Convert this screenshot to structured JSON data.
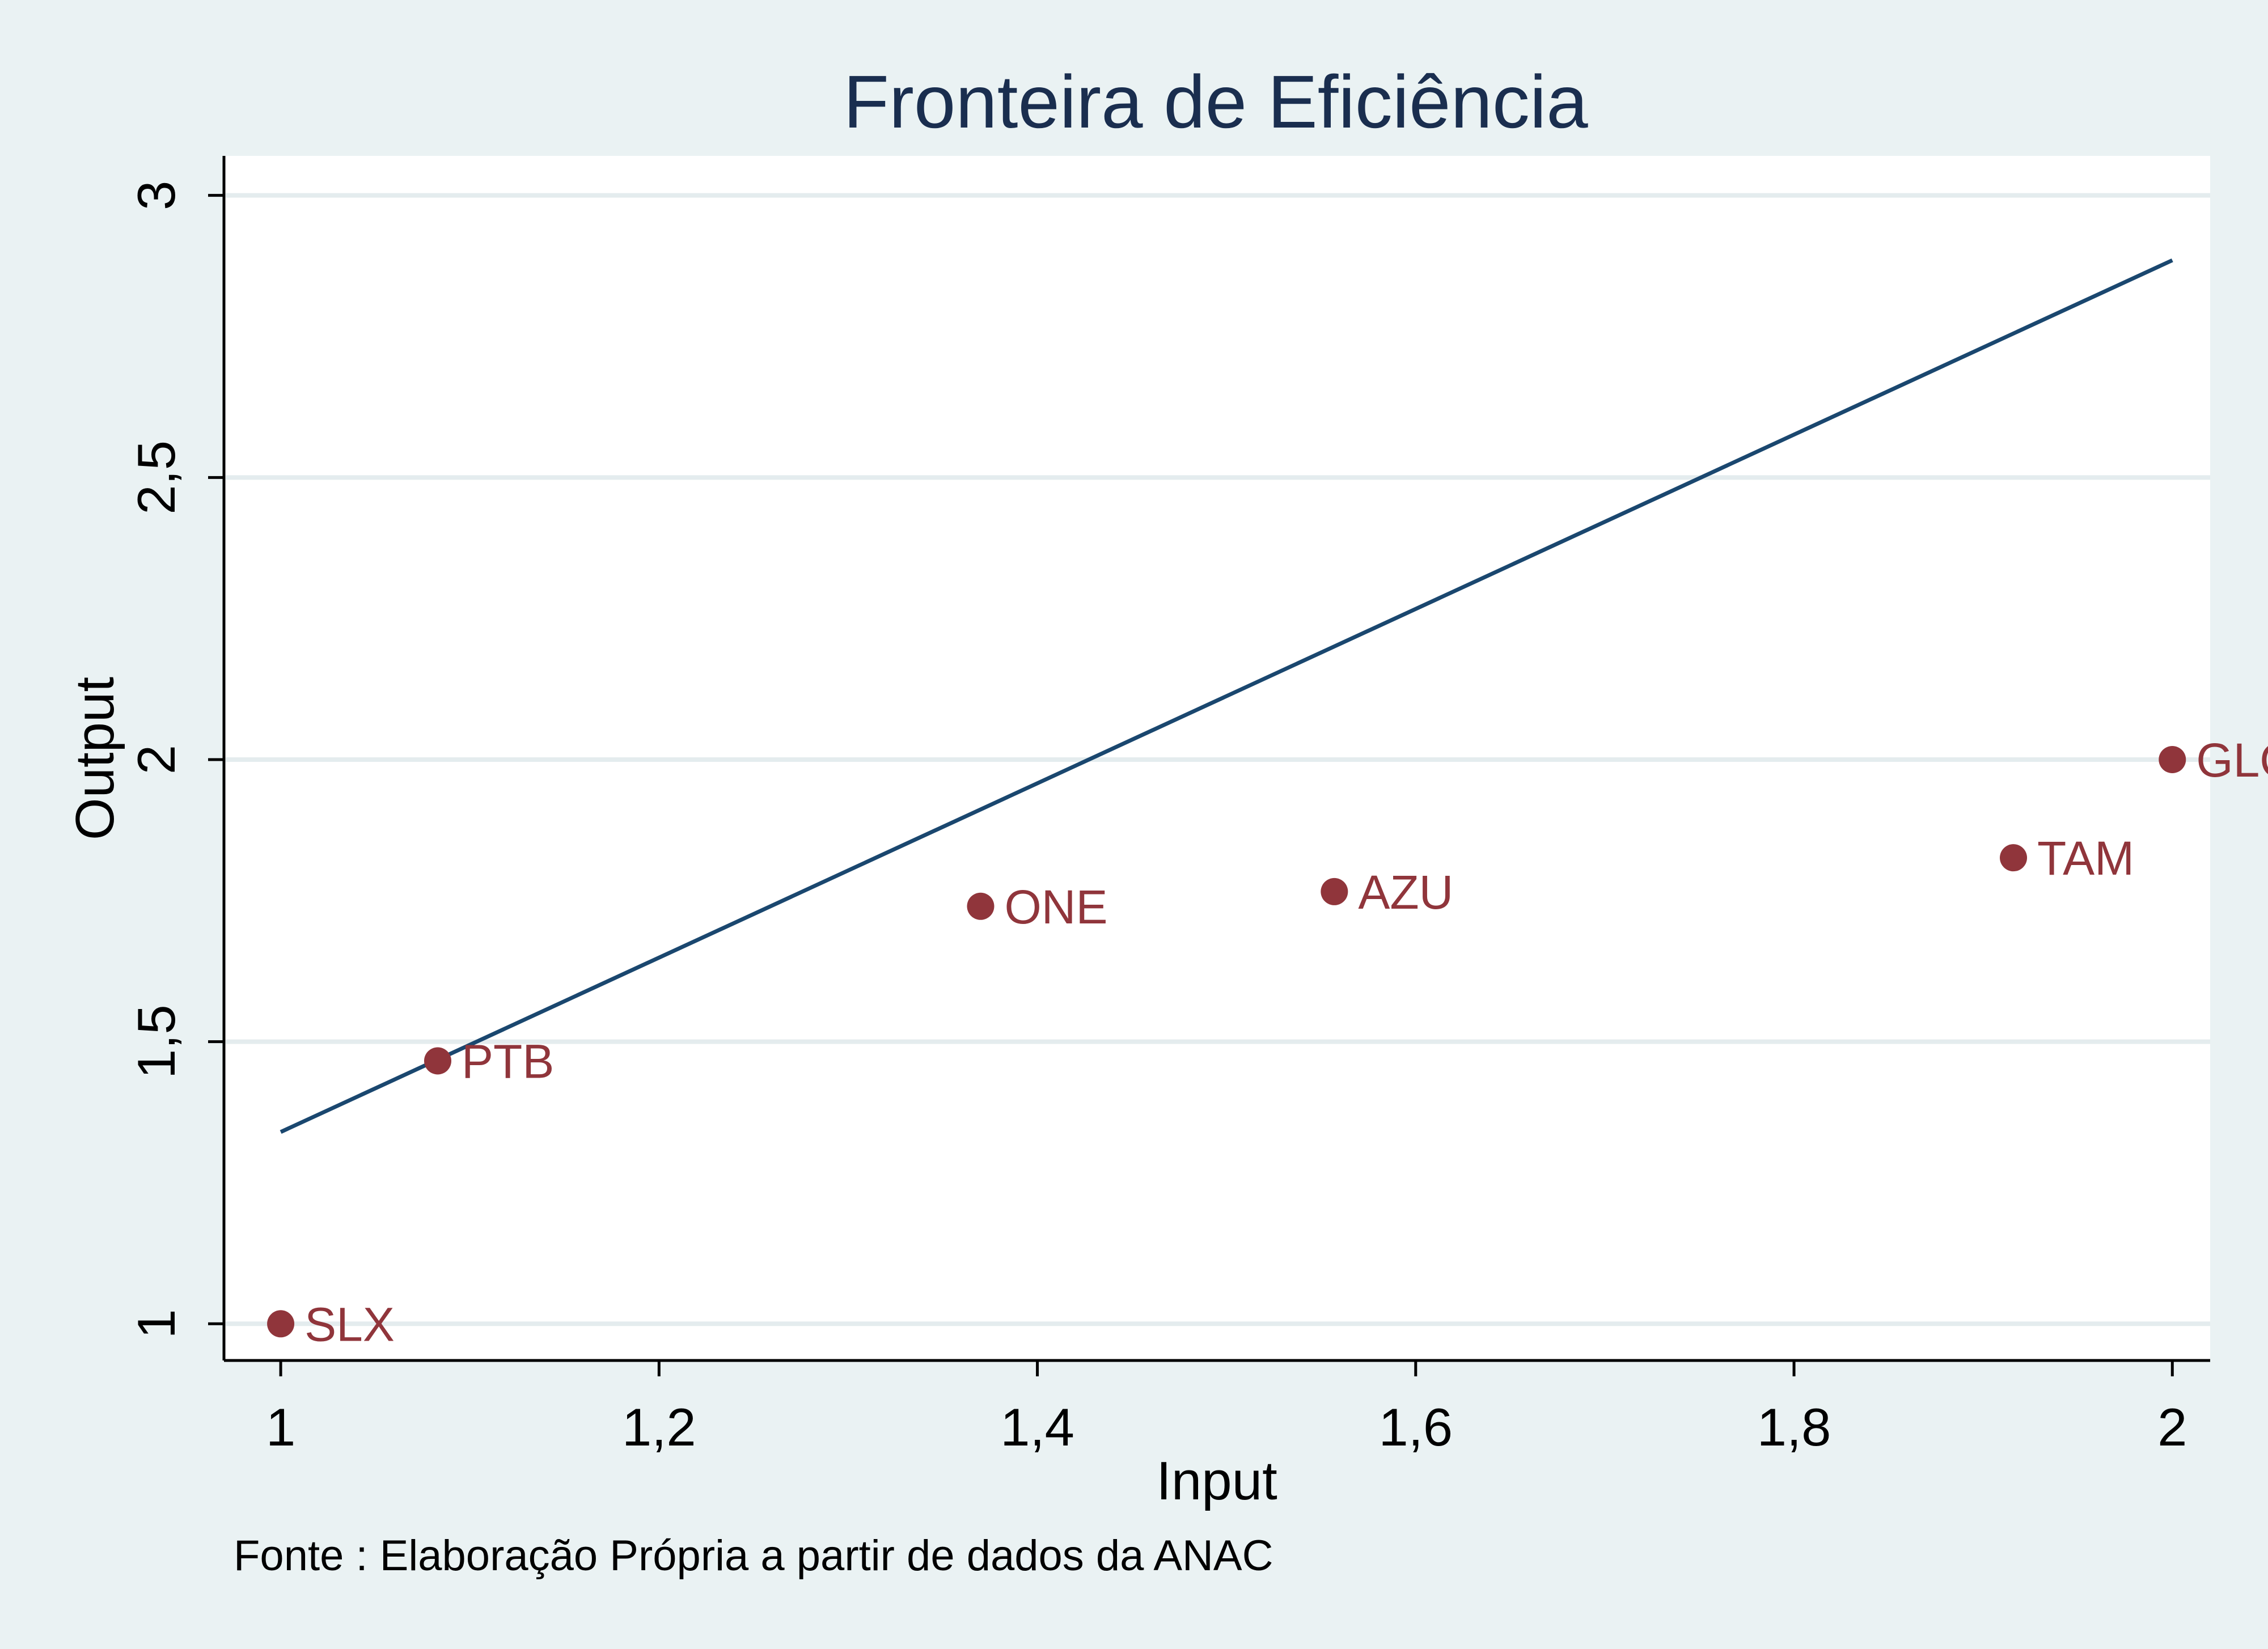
{
  "colors": {
    "background": "#eaf2f3",
    "plot_background": "#ffffff",
    "gridline": "#e4ecee",
    "axis": "#000000",
    "title": "#1a2e4f",
    "line": "#1a476f",
    "marker": "#90353b",
    "text": "#000000"
  },
  "chart_data": {
    "type": "scatter",
    "title": "Fronteira de Eficiência",
    "xlabel": "Input",
    "ylabel": "Output",
    "note": "Fonte : Elaboração Própria a partir de dados da ANAC",
    "xlim": [
      0.97,
      2.02
    ],
    "ylim": [
      0.935,
      3.07
    ],
    "xticks": [
      1,
      1.2,
      1.4,
      1.6,
      1.8,
      2
    ],
    "xtick_labels": [
      "1",
      "1,2",
      "1,4",
      "1,6",
      "1,8",
      "2"
    ],
    "yticks": [
      1,
      1.5,
      2,
      2.5,
      3
    ],
    "ytick_labels": [
      "1",
      "1,5",
      "2",
      "2,5",
      "3"
    ],
    "grid": "horizontal",
    "legend": "none",
    "series": [
      {
        "type": "scatter",
        "points": [
          {
            "label": "SLX",
            "x": 1.0,
            "y": 1.0
          },
          {
            "label": "PTB",
            "x": 1.083,
            "y": 1.466
          },
          {
            "label": "ONE",
            "x": 1.37,
            "y": 1.74
          },
          {
            "label": "AZU",
            "x": 1.557,
            "y": 1.766
          },
          {
            "label": "TAM",
            "x": 1.916,
            "y": 1.826
          },
          {
            "label": "GLO",
            "x": 2.0,
            "y": 2.0
          }
        ]
      },
      {
        "type": "line",
        "points": [
          {
            "x": 1.0,
            "y": 1.34
          },
          {
            "x": 2.0,
            "y": 2.885
          }
        ]
      }
    ]
  }
}
